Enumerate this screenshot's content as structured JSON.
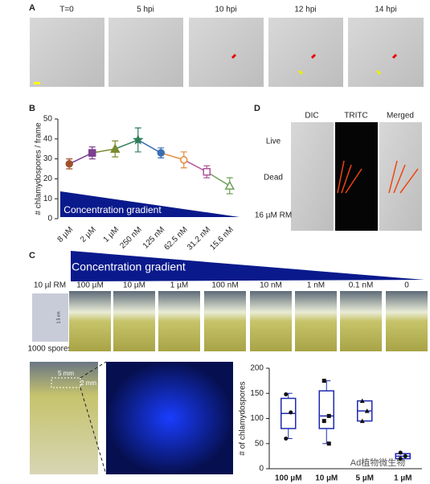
{
  "panels": {
    "a": {
      "letter": "A",
      "labels": [
        "T=0",
        "5 hpi",
        "10 hpi",
        "12 hpi",
        "14 hpi"
      ]
    },
    "b": {
      "letter": "B",
      "annotation": "Concentration gradient"
    },
    "c": {
      "letter": "C",
      "gradient": "Concentration gradient",
      "drop": "10 µl RM",
      "spores": "1000 spores",
      "scale": "1.5 cm",
      "plates": [
        "100 µM",
        "10 µM",
        "1 µM",
        "100 nM",
        "10 nM",
        "1 nM",
        "0.1 nM",
        "0"
      ],
      "zoom_w": "5 mm",
      "zoom_h": "2 mm"
    },
    "d": {
      "letter": "D",
      "columns": [
        "DIC",
        "TRITC",
        "Merged"
      ],
      "rows": [
        "Live",
        "Dead",
        "16 µM RM"
      ]
    }
  },
  "watermark": "Ad植物微生物",
  "chart_data": [
    {
      "type": "line",
      "ylabel": "# chlamydospores / frame",
      "categories": [
        "8 µM",
        "2 µM",
        "1 µM",
        "250 nM",
        "125 nM",
        "62.5 nM",
        "31.2 nM",
        "15.6 nM"
      ],
      "values": [
        27.5,
        33,
        35,
        39.5,
        33,
        29.5,
        23.5,
        16.5
      ],
      "errors": [
        2.5,
        3,
        4,
        6,
        2.5,
        4,
        3,
        4
      ],
      "point_colors": [
        "#a0522d",
        "#7b3f8f",
        "#7a8a2e",
        "#2e7d5b",
        "#3b6fb0",
        "#e08a3a",
        "#b0559a",
        "#6fa05a"
      ],
      "markers": [
        "circle",
        "square",
        "triangle",
        "star",
        "circle",
        "circle-open",
        "square-open",
        "triangle-open"
      ],
      "ylim": [
        0,
        50
      ],
      "yticks": [
        0,
        10,
        20,
        30,
        40,
        50
      ]
    },
    {
      "type": "box",
      "ylabel": "# of chlamydospores",
      "categories": [
        "100 µM",
        "10 µM",
        "5 µM",
        "1 µM"
      ],
      "color": "#1f2ab0",
      "boxes": [
        {
          "min": 60,
          "q1": 80,
          "median": 110,
          "q3": 140,
          "max": 150,
          "points": [
            148,
            112,
            60
          ]
        },
        {
          "min": 50,
          "q1": 80,
          "median": 105,
          "q3": 155,
          "max": 175,
          "points": [
            175,
            105,
            95,
            50
          ]
        },
        {
          "min": 95,
          "q1": 95,
          "median": 115,
          "q3": 135,
          "max": 135,
          "points": [
            135,
            115,
            95
          ]
        },
        {
          "min": 20,
          "q1": 20,
          "median": 25,
          "q3": 30,
          "max": 30,
          "points": [
            32,
            25,
            20
          ]
        }
      ],
      "ylim": [
        0,
        200
      ],
      "yticks": [
        0,
        50,
        100,
        150,
        200
      ]
    }
  ]
}
